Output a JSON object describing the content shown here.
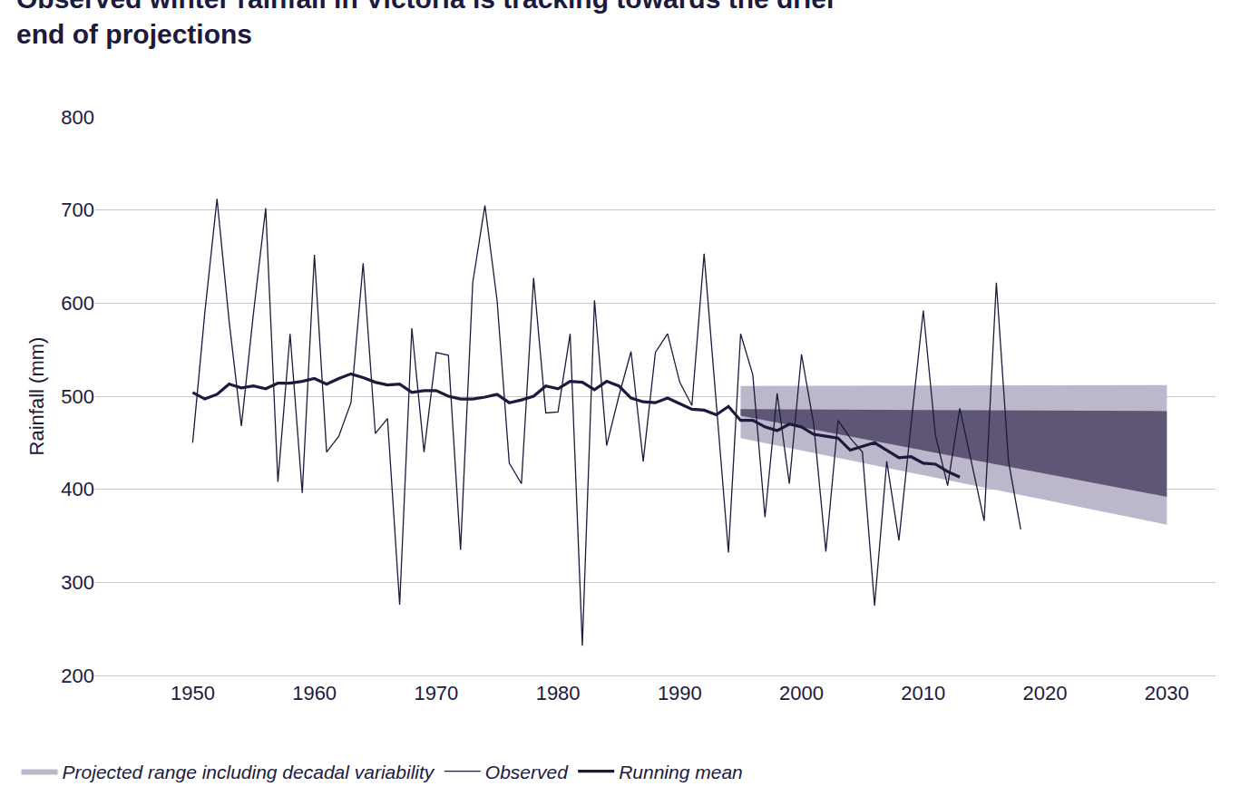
{
  "chart_data": {
    "type": "line",
    "title": "Observed winter rainfall in Victoria is tracking towards the drier end of projections",
    "y_label": "Rainfall (mm)",
    "xlim": [
      1942,
      2034
    ],
    "xticks": [
      1950,
      1960,
      1970,
      1980,
      1990,
      2000,
      2010,
      2020,
      2030
    ],
    "ylim": [
      200,
      800
    ],
    "yticks": [
      200,
      300,
      400,
      500,
      600,
      700,
      800
    ],
    "grid": true,
    "legend": "bottom left",
    "series": [
      {
        "name": "Projected range including decadal variability",
        "type": "band",
        "color": "#bcb7ca",
        "x": [
          1995,
          2030
        ],
        "lower": [
          455,
          362
        ],
        "upper": [
          511,
          512
        ]
      },
      {
        "type": "band",
        "color": "#5f5675",
        "x": [
          1995,
          2030
        ],
        "lower": [
          479,
          392
        ],
        "upper": [
          486,
          484
        ]
      },
      {
        "name": "Observed",
        "type": "line",
        "color": "#1c1a3d",
        "line_style": "thin",
        "x": [
          1950,
          1951,
          1952,
          1953,
          1954,
          1955,
          1956,
          1957,
          1958,
          1959,
          1960,
          1961,
          1962,
          1963,
          1964,
          1965,
          1966,
          1967,
          1968,
          1969,
          1970,
          1971,
          1972,
          1973,
          1974,
          1975,
          1976,
          1977,
          1978,
          1979,
          1980,
          1981,
          1982,
          1983,
          1984,
          1985,
          1986,
          1987,
          1988,
          1989,
          1990,
          1991,
          1992,
          1993,
          1994,
          1995,
          1996,
          1997,
          1998,
          1999,
          2000,
          2001,
          2002,
          2003,
          2004,
          2005,
          2006,
          2007,
          2008,
          2009,
          2010,
          2011,
          2012,
          2013,
          2014,
          2015,
          2016,
          2017,
          2018
        ],
        "values": [
          450,
          590,
          712,
          580,
          468,
          590,
          702,
          408,
          567,
          396,
          652,
          440,
          457,
          493,
          643,
          460,
          476,
          276,
          573,
          440,
          547,
          544,
          335,
          622,
          705,
          603,
          428,
          406,
          627,
          482,
          483,
          567,
          232,
          603,
          447,
          500,
          548,
          430,
          547,
          567,
          515,
          490,
          653,
          490,
          332,
          567,
          523,
          370,
          503,
          406,
          545,
          470,
          333,
          474,
          455,
          440,
          275,
          430,
          345,
          470,
          592,
          458,
          404,
          487,
          425,
          366,
          622,
          430,
          357
        ]
      },
      {
        "name": "Running mean",
        "type": "line",
        "color": "#1c1a3d",
        "line_style": "bold",
        "x": [
          1950,
          1951,
          1952,
          1953,
          1954,
          1955,
          1956,
          1957,
          1958,
          1959,
          1960,
          1961,
          1962,
          1963,
          1964,
          1965,
          1966,
          1967,
          1968,
          1969,
          1970,
          1971,
          1972,
          1973,
          1974,
          1975,
          1976,
          1977,
          1978,
          1979,
          1980,
          1981,
          1982,
          1983,
          1984,
          1985,
          1986,
          1987,
          1988,
          1989,
          1990,
          1991,
          1992,
          1993,
          1994,
          1995,
          1996,
          1997,
          1998,
          1999,
          2000,
          2001,
          2002,
          2003,
          2004,
          2005,
          2006,
          2007,
          2008,
          2009,
          2010,
          2011,
          2012,
          2013
        ],
        "values": [
          504,
          497,
          502,
          513,
          509,
          511,
          508,
          514,
          514,
          516,
          519,
          513,
          519,
          524,
          520,
          515,
          512,
          513,
          504,
          506,
          506,
          500,
          497,
          497,
          499,
          502,
          493,
          496,
          500,
          511,
          508,
          516,
          515,
          507,
          516,
          511,
          498,
          494,
          493,
          498,
          492,
          486,
          485,
          480,
          489,
          474,
          474,
          467,
          463,
          470,
          467,
          459,
          457,
          455,
          442,
          446,
          450,
          442,
          434,
          435,
          428,
          427,
          419,
          413
        ]
      }
    ]
  }
}
